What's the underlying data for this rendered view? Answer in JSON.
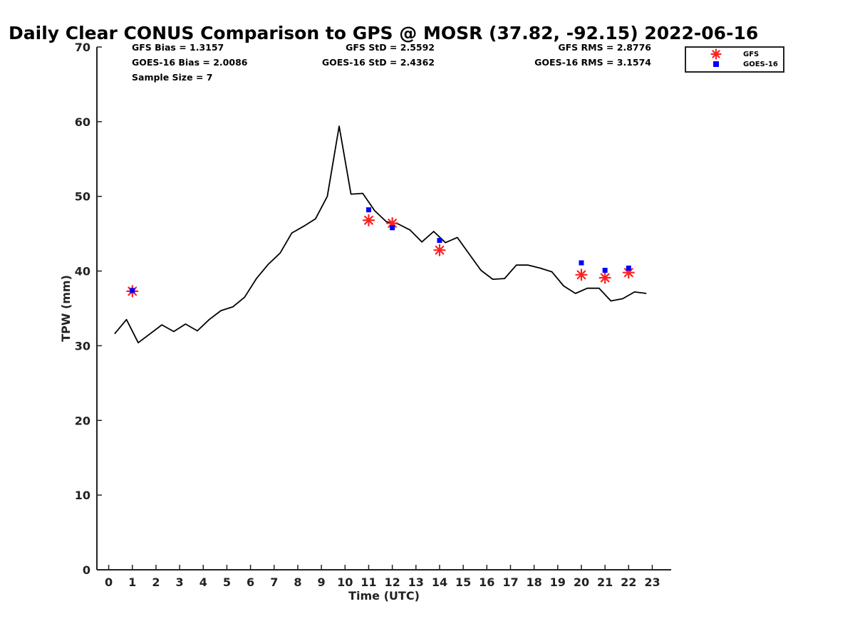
{
  "chart_data": {
    "type": "line",
    "title": "Daily Clear CONUS Comparison to GPS @ MOSR (37.82, -92.15) 2022-06-16",
    "xlabel": "Time (UTC)",
    "ylabel": "TPW (mm)",
    "xlim": [
      -0.5,
      23.8
    ],
    "ylim": [
      0,
      70
    ],
    "xticks": [
      "0",
      "1",
      "2",
      "3",
      "4",
      "5",
      "6",
      "7",
      "8",
      "9",
      "10",
      "11",
      "12",
      "13",
      "14",
      "15",
      "16",
      "17",
      "18",
      "19",
      "20",
      "21",
      "22",
      "23"
    ],
    "yticks": [
      "0",
      "10",
      "20",
      "30",
      "40",
      "50",
      "60",
      "70"
    ],
    "stats": {
      "gfs_bias": "GFS Bias = 1.3157",
      "goes_bias": "GOES-16 Bias = 2.0086",
      "sample_size": "Sample Size = 7",
      "gfs_std": "GFS StD = 2.5592",
      "goes_std": "GOES-16 StD = 2.4362",
      "gfs_rms": "GFS RMS = 2.8776",
      "goes_rms": "GOES-16 RMS = 3.1574"
    },
    "legend": {
      "location": "top-right",
      "entries": [
        "GFS",
        "GOES-16"
      ]
    },
    "series": [
      {
        "name": "GPS",
        "style": "line",
        "color": "#000000",
        "x": [
          0.25,
          0.75,
          1.25,
          1.75,
          2.25,
          2.75,
          3.25,
          3.75,
          4.25,
          4.75,
          5.25,
          5.75,
          6.25,
          6.75,
          7.25,
          7.75,
          8.25,
          8.75,
          9.25,
          9.75,
          10.25,
          10.75,
          11.25,
          11.75,
          12.25,
          12.75,
          13.25,
          13.75,
          14.25,
          14.75,
          15.25,
          15.75,
          16.25,
          16.75,
          17.25,
          17.75,
          18.25,
          18.75,
          19.25,
          19.75,
          20.25,
          20.75,
          21.25,
          21.75,
          22.25,
          22.75
        ],
        "y": [
          31.6,
          33.5,
          30.4,
          31.6,
          32.8,
          31.9,
          32.9,
          32.0,
          33.5,
          34.7,
          35.2,
          36.5,
          39.0,
          40.9,
          42.4,
          45.1,
          46.0,
          47.0,
          50.0,
          59.4,
          50.3,
          50.4,
          48.1,
          46.6,
          46.3,
          45.5,
          43.9,
          45.3,
          43.8,
          44.5,
          42.3,
          40.1,
          38.9,
          39.0,
          40.8,
          40.8,
          40.4,
          39.9,
          38.0,
          37.0,
          37.7,
          37.7,
          36.0,
          36.3,
          37.2,
          37.0
        ]
      },
      {
        "name": "GFS",
        "style": "asterisk",
        "color": "#ff2020",
        "x": [
          1,
          11,
          12,
          14,
          20,
          21,
          22
        ],
        "y": [
          37.3,
          46.8,
          46.4,
          42.8,
          39.5,
          39.1,
          39.8
        ]
      },
      {
        "name": "GOES-16",
        "style": "square",
        "color": "#0000ff",
        "x": [
          1,
          11,
          12,
          14,
          20,
          21,
          22
        ],
        "y": [
          37.4,
          48.2,
          45.8,
          44.1,
          41.1,
          40.1,
          40.4
        ]
      }
    ]
  }
}
